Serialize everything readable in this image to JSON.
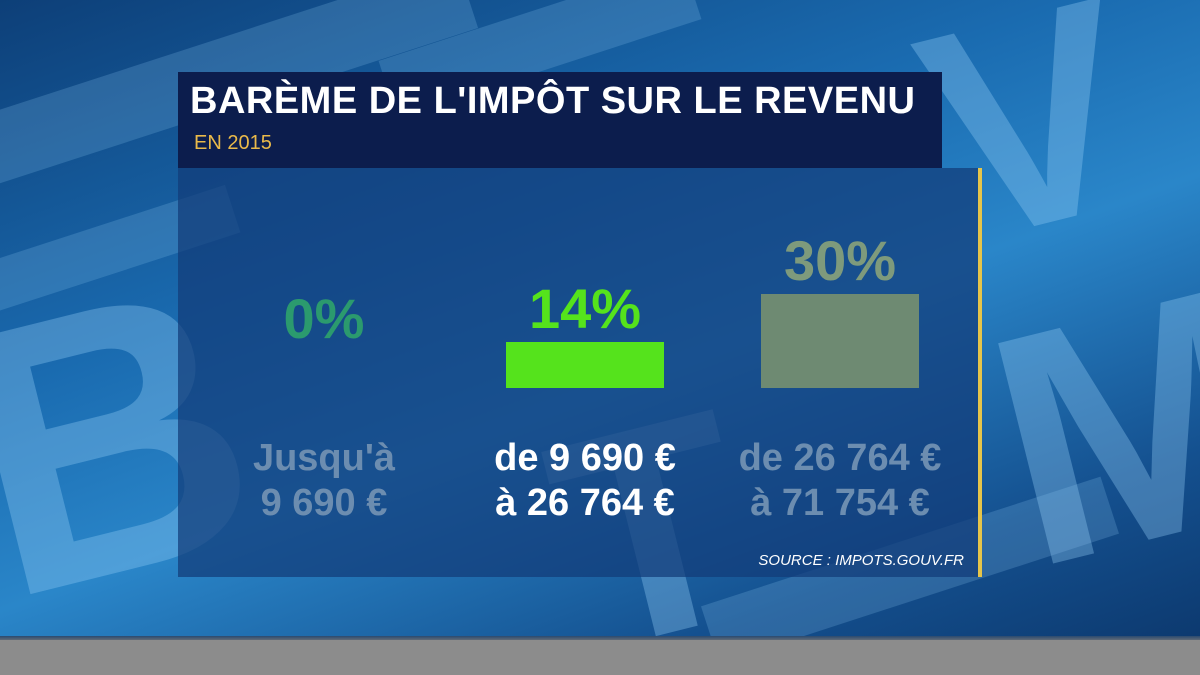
{
  "title": "BARÈME DE L'IMPÔT SUR LE REVENU",
  "subtitle": "EN 2015",
  "source": "SOURCE : IMPOTS.GOUV.FR",
  "chart_data": {
    "type": "bar",
    "title": "BARÈME DE L'IMPÔT SUR LE REVENU",
    "subtitle": "EN 2015",
    "categories": [
      "Jusqu'à 9 690 €",
      "de 9 690 € à 26 764 €",
      "de 26 764 € à 71 754 €"
    ],
    "range_lines": [
      [
        "Jusqu'à",
        "9 690 €"
      ],
      [
        "de 9 690 €",
        "à 26 764 €"
      ],
      [
        "de 26 764 €",
        "à 71 754 €"
      ]
    ],
    "values": [
      0,
      14,
      30
    ],
    "value_labels": [
      "0%",
      "14%",
      "30%"
    ],
    "highlighted_index": 1,
    "colors": {
      "highlight_bar": "#55e31c",
      "highlight_label": "#55e31c",
      "dim_bar": "#6e8a72",
      "dim_label_0": "#2b9a6e",
      "dim_label_2": "#7e9a7c",
      "highlight_range": "#ffffff",
      "dim_range": "#6c8db0"
    },
    "ylim": [
      0,
      30
    ]
  }
}
